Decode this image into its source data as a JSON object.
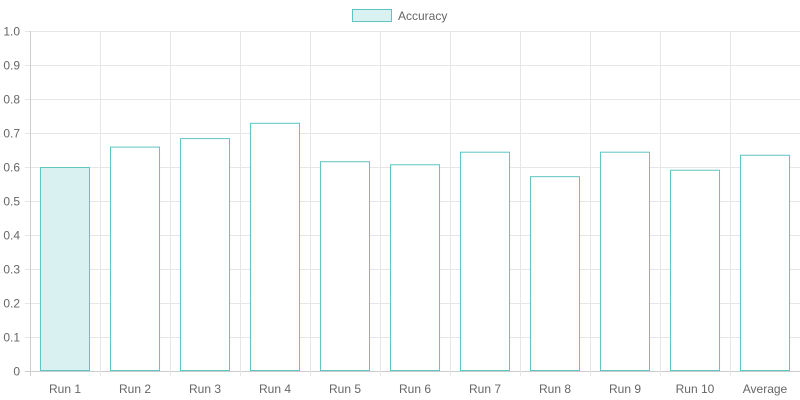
{
  "chart_data": {
    "type": "bar",
    "categories": [
      "Run 1",
      "Run 2",
      "Run 3",
      "Run 4",
      "Run 5",
      "Run 6",
      "Run 7",
      "Run 8",
      "Run 9",
      "Run 10",
      "Average"
    ],
    "series": [
      {
        "name": "Accuracy",
        "values": [
          0.6,
          0.66,
          0.685,
          0.73,
          0.617,
          0.608,
          0.645,
          0.573,
          0.645,
          0.592,
          0.636
        ]
      }
    ],
    "ylim": [
      0,
      1.0
    ],
    "yticks": [
      0,
      0.1,
      0.2,
      0.3,
      0.4,
      0.5,
      0.6,
      0.7,
      0.8,
      0.9,
      1.0
    ],
    "ytick_labels": [
      "0",
      "0.1",
      "0.2",
      "0.3",
      "0.4",
      "0.5",
      "0.6",
      "0.7",
      "0.8",
      "0.9",
      "1.0"
    ],
    "grid": true,
    "legend": "top-center",
    "highlighted_category": "Run 1",
    "colors": {
      "bar_border": "#5ec4c4",
      "bar_fill_highlight": "#d9f1f1",
      "bar_fill": "#ffffff",
      "grid": "#e6e6e6",
      "axis": "#cccccc",
      "text": "#666666"
    }
  }
}
